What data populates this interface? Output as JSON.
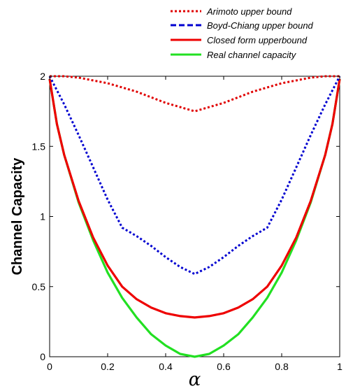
{
  "chart_data": {
    "type": "line",
    "xlabel": "α",
    "ylabel": "Channel Capacity",
    "xlim": [
      0,
      1
    ],
    "ylim": [
      0,
      2
    ],
    "xticks": [
      "0",
      "0.2",
      "0.4",
      "0.6",
      "0.8",
      "1"
    ],
    "yticks": [
      "0",
      "0.5",
      "1",
      "1.5",
      "2"
    ],
    "grid": false,
    "legend_position": "top-right",
    "series": [
      {
        "name": "Arimoto upper bound",
        "color": "#e00000",
        "style": "dotted",
        "x": [
          0,
          0.05,
          0.1,
          0.15,
          0.2,
          0.25,
          0.3,
          0.35,
          0.4,
          0.45,
          0.5,
          0.55,
          0.6,
          0.65,
          0.7,
          0.75,
          0.8,
          0.85,
          0.9,
          0.95,
          1
        ],
        "y": [
          2.0,
          2.0,
          1.99,
          1.97,
          1.95,
          1.92,
          1.89,
          1.85,
          1.81,
          1.78,
          1.75,
          1.78,
          1.81,
          1.85,
          1.89,
          1.92,
          1.95,
          1.97,
          1.99,
          2.0,
          2.0
        ]
      },
      {
        "name": "Boyd-Chiang upper bound",
        "color": "#0000d0",
        "style": "dotted",
        "x": [
          0,
          0.05,
          0.1,
          0.15,
          0.2,
          0.25,
          0.3,
          0.35,
          0.4,
          0.45,
          0.5,
          0.55,
          0.6,
          0.65,
          0.7,
          0.75,
          0.8,
          0.85,
          0.9,
          0.95,
          1
        ],
        "y": [
          2.0,
          1.8,
          1.58,
          1.35,
          1.12,
          0.92,
          0.86,
          0.79,
          0.71,
          0.64,
          0.59,
          0.64,
          0.71,
          0.79,
          0.86,
          0.92,
          1.12,
          1.35,
          1.58,
          1.8,
          2.0
        ]
      },
      {
        "name": "Closed form upperbound",
        "color": "#ee0000",
        "style": "solid",
        "x": [
          0,
          0.025,
          0.05,
          0.1,
          0.15,
          0.2,
          0.25,
          0.3,
          0.35,
          0.4,
          0.45,
          0.5,
          0.55,
          0.6,
          0.65,
          0.7,
          0.75,
          0.8,
          0.85,
          0.9,
          0.95,
          0.975,
          1
        ],
        "y": [
          1.98,
          1.66,
          1.44,
          1.11,
          0.85,
          0.65,
          0.5,
          0.41,
          0.35,
          0.31,
          0.29,
          0.28,
          0.29,
          0.31,
          0.35,
          0.41,
          0.5,
          0.65,
          0.85,
          1.11,
          1.44,
          1.66,
          1.98
        ]
      },
      {
        "name": "Real channel capacity",
        "color": "#22e022",
        "style": "solid",
        "x": [
          0,
          0.025,
          0.05,
          0.1,
          0.15,
          0.2,
          0.25,
          0.3,
          0.35,
          0.4,
          0.45,
          0.5,
          0.55,
          0.6,
          0.65,
          0.7,
          0.75,
          0.8,
          0.85,
          0.9,
          0.95,
          0.975,
          1
        ],
        "y": [
          1.98,
          1.66,
          1.44,
          1.1,
          0.83,
          0.6,
          0.42,
          0.28,
          0.16,
          0.08,
          0.02,
          0.0,
          0.02,
          0.08,
          0.16,
          0.28,
          0.42,
          0.6,
          0.83,
          1.1,
          1.44,
          1.66,
          1.98
        ]
      }
    ]
  }
}
